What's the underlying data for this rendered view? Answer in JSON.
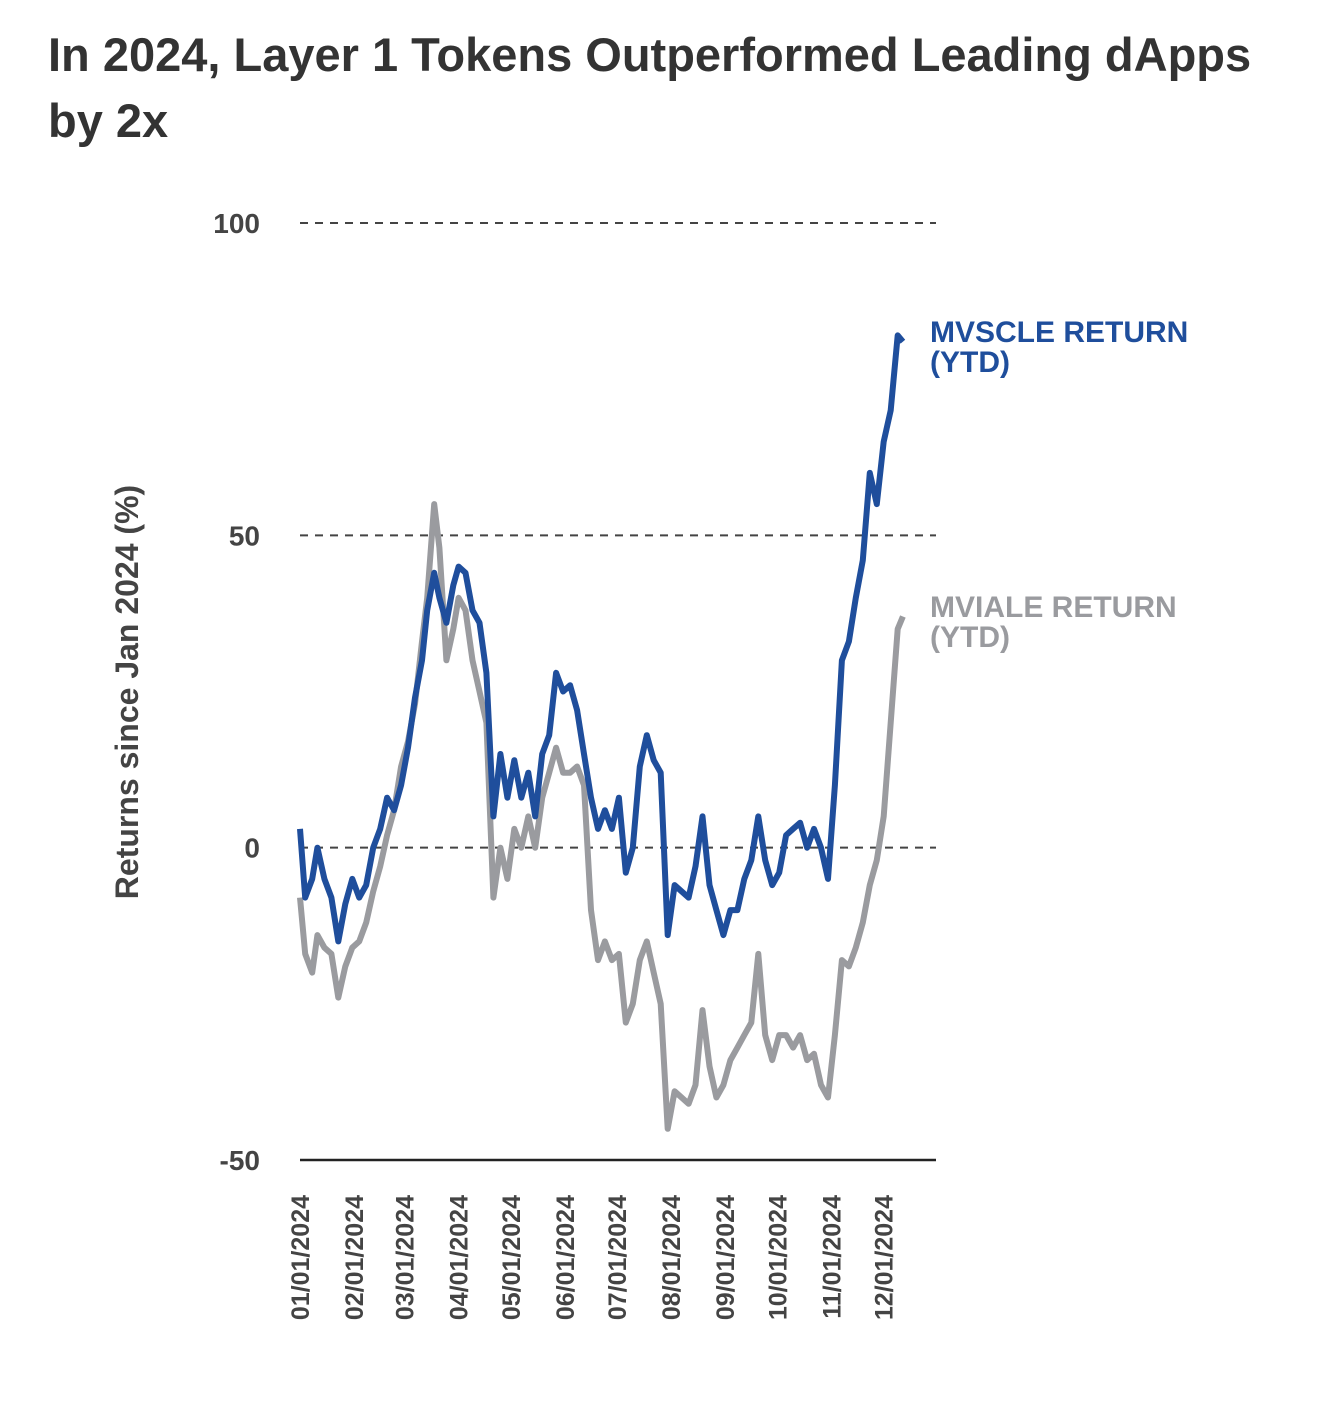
{
  "chart_data": {
    "type": "line",
    "title": "In 2024, Layer 1 Tokens Outperformed Leading dApps by 2x",
    "y_label": "Returns since Jan 2024 (%)",
    "x": [
      "2024-01-01",
      "2024-01-04",
      "2024-01-08",
      "2024-01-11",
      "2024-01-15",
      "2024-01-19",
      "2024-01-23",
      "2024-01-27",
      "2024-01-31",
      "2024-02-04",
      "2024-02-08",
      "2024-02-12",
      "2024-02-16",
      "2024-02-20",
      "2024-02-24",
      "2024-02-28",
      "2024-03-03",
      "2024-03-07",
      "2024-03-11",
      "2024-03-14",
      "2024-03-18",
      "2024-03-21",
      "2024-03-25",
      "2024-03-29",
      "2024-04-01",
      "2024-04-05",
      "2024-04-09",
      "2024-04-13",
      "2024-04-17",
      "2024-04-21",
      "2024-04-25",
      "2024-04-29",
      "2024-05-03",
      "2024-05-07",
      "2024-05-11",
      "2024-05-15",
      "2024-05-19",
      "2024-05-23",
      "2024-05-27",
      "2024-05-31",
      "2024-06-04",
      "2024-06-08",
      "2024-06-12",
      "2024-06-16",
      "2024-06-20",
      "2024-06-24",
      "2024-06-28",
      "2024-07-02",
      "2024-07-06",
      "2024-07-10",
      "2024-07-14",
      "2024-07-18",
      "2024-07-22",
      "2024-07-26",
      "2024-07-30",
      "2024-08-03",
      "2024-08-07",
      "2024-08-11",
      "2024-08-15",
      "2024-08-19",
      "2024-08-23",
      "2024-08-27",
      "2024-08-31",
      "2024-09-04",
      "2024-09-08",
      "2024-09-12",
      "2024-09-16",
      "2024-09-20",
      "2024-09-24",
      "2024-09-28",
      "2024-10-02",
      "2024-10-06",
      "2024-10-10",
      "2024-10-14",
      "2024-10-18",
      "2024-10-22",
      "2024-10-26",
      "2024-10-30",
      "2024-11-03",
      "2024-11-07",
      "2024-11-11",
      "2024-11-15",
      "2024-11-19",
      "2024-11-23",
      "2024-11-27",
      "2024-12-01",
      "2024-12-05",
      "2024-12-09",
      "2024-12-12"
    ],
    "series": [
      {
        "name": "MVSCLE RETURN (YTD)",
        "color": "#1f4e9c",
        "values": [
          3,
          -8,
          -5,
          0,
          -5,
          -8,
          -15,
          -9,
          -5,
          -8,
          -6,
          0,
          3,
          8,
          6,
          10,
          16,
          24,
          30,
          38,
          44,
          40,
          36,
          42,
          45,
          44,
          38,
          36,
          28,
          5,
          15,
          8,
          14,
          8,
          12,
          5,
          15,
          18,
          28,
          25,
          26,
          22,
          15,
          8,
          3,
          6,
          3,
          8,
          -4,
          0,
          13,
          18,
          14,
          12,
          -14,
          -6,
          -7,
          -8,
          -3,
          5,
          -6,
          -10,
          -14,
          -10,
          -10,
          -5,
          -2,
          5,
          -2,
          -6,
          -4,
          2,
          3,
          4,
          0,
          3,
          0,
          -5,
          10,
          30,
          33,
          40,
          46,
          60,
          55,
          65,
          70,
          82,
          81
        ]
      },
      {
        "name": "MVIALE RETURN (YTD)",
        "color": "#9a9b9f",
        "values": [
          -8,
          -17,
          -20,
          -14,
          -16,
          -17,
          -24,
          -19,
          -16,
          -15,
          -12,
          -7,
          -3,
          2,
          6,
          13,
          17,
          23,
          33,
          40,
          55,
          48,
          30,
          35,
          40,
          38,
          30,
          25,
          20,
          -8,
          0,
          -5,
          3,
          0,
          5,
          0,
          8,
          12,
          16,
          12,
          12,
          13,
          10,
          -10,
          -18,
          -15,
          -18,
          -17,
          -28,
          -25,
          -18,
          -15,
          -20,
          -25,
          -45,
          -39,
          -40,
          -41,
          -38,
          -26,
          -35,
          -40,
          -38,
          -34,
          -32,
          -30,
          -28,
          -17,
          -30,
          -34,
          -30,
          -30,
          -32,
          -30,
          -34,
          -33,
          -38,
          -40,
          -30,
          -18,
          -19,
          -16,
          -12,
          -6,
          -2,
          5,
          20,
          35,
          37
        ]
      }
    ],
    "xlim": [
      "2024-01-01",
      "2024-12-31"
    ],
    "xticks": [
      {
        "value": "2024-01-01",
        "label": "01/01/2024"
      },
      {
        "value": "2024-02-01",
        "label": "02/01/2024"
      },
      {
        "value": "2024-03-01",
        "label": "03/01/2024"
      },
      {
        "value": "2024-04-01",
        "label": "04/01/2024"
      },
      {
        "value": "2024-05-01",
        "label": "05/01/2024"
      },
      {
        "value": "2024-06-01",
        "label": "06/01/2024"
      },
      {
        "value": "2024-07-01",
        "label": "07/01/2024"
      },
      {
        "value": "2024-08-01",
        "label": "08/01/2024"
      },
      {
        "value": "2024-09-01",
        "label": "09/01/2024"
      },
      {
        "value": "2024-10-01",
        "label": "10/01/2024"
      },
      {
        "value": "2024-11-01",
        "label": "11/01/2024"
      },
      {
        "value": "2024-12-01",
        "label": "12/01/2024"
      }
    ],
    "ylim": [
      -50,
      100
    ],
    "yticks": [
      -50,
      0,
      50,
      100
    ],
    "grid": true
  }
}
